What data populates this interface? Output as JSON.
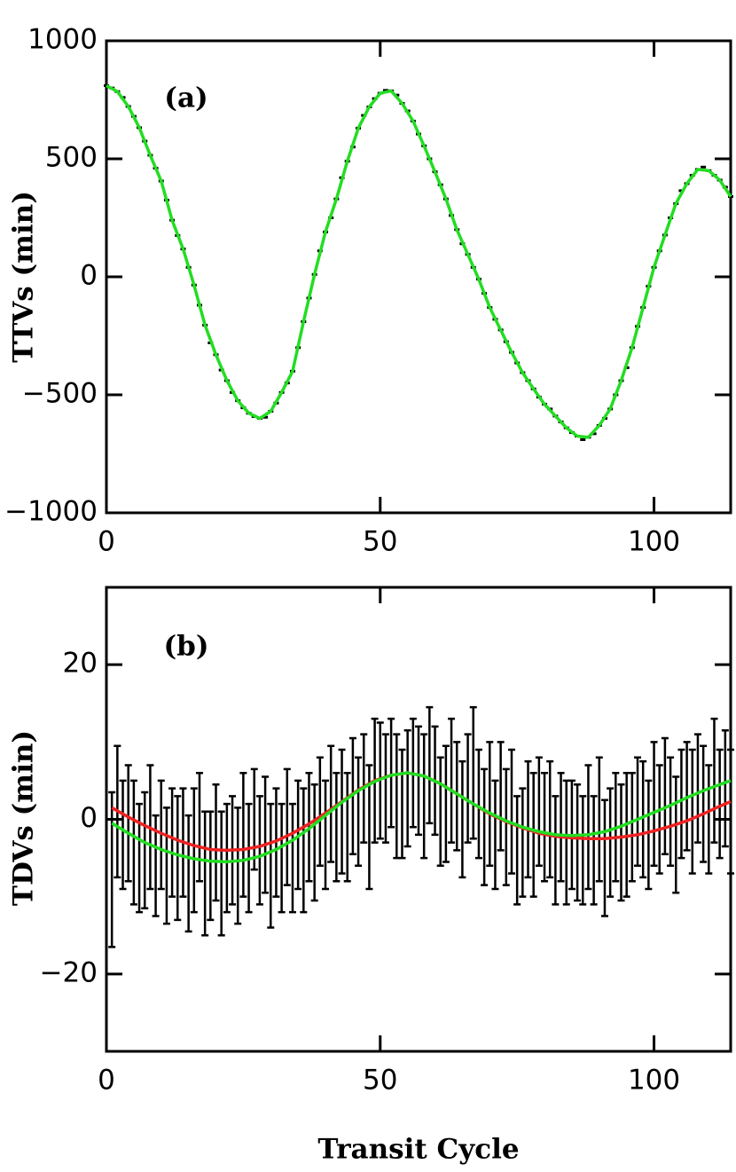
{
  "chart_data": [
    {
      "type": "line",
      "annotation": "(a)",
      "ylabel": "TTVs (min)",
      "xlim": [
        0,
        114
      ],
      "ylim": [
        -1000,
        1000
      ],
      "xticks": [
        0,
        50,
        100
      ],
      "yticks": [
        {
          "value": -1000,
          "label": "−1000"
        },
        {
          "value": -500,
          "label": "−500"
        },
        0,
        500,
        1000
      ],
      "series": [
        {
          "style": "dots",
          "color": "#000000",
          "x": [
            0,
            1,
            2,
            3,
            4,
            5,
            6,
            7,
            8,
            9,
            10,
            11,
            12,
            13,
            14,
            15,
            16,
            17,
            18,
            19,
            20,
            21,
            22,
            23,
            24,
            25,
            26,
            27,
            28,
            29,
            30,
            31,
            32,
            33,
            34,
            35,
            36,
            37,
            38,
            39,
            40,
            41,
            42,
            43,
            44,
            45,
            46,
            47,
            48,
            49,
            50,
            51,
            52,
            53,
            54,
            55,
            56,
            57,
            58,
            59,
            60,
            61,
            62,
            63,
            64,
            65,
            66,
            67,
            68,
            69,
            70,
            71,
            72,
            73,
            74,
            75,
            76,
            77,
            78,
            79,
            80,
            81,
            82,
            83,
            84,
            85,
            86,
            87,
            88,
            89,
            90,
            91,
            92,
            93,
            94,
            95,
            96,
            97,
            98,
            99,
            100,
            101,
            102,
            103,
            104,
            105,
            106,
            107,
            108,
            109,
            110,
            111,
            112,
            113,
            114
          ],
          "values": [
            810,
            800,
            785,
            760,
            722,
            680,
            632,
            575,
            515,
            460,
            406,
            325,
            240,
            175,
            118,
            40,
            -35,
            -120,
            -205,
            -280,
            -330,
            -395,
            -440,
            -490,
            -525,
            -555,
            -578,
            -592,
            -600,
            -595,
            -570,
            -535,
            -490,
            -450,
            -400,
            -300,
            -190,
            -90,
            10,
            110,
            190,
            250,
            330,
            420,
            490,
            550,
            630,
            684,
            720,
            755,
            778,
            790,
            788,
            770,
            735,
            703,
            660,
            605,
            555,
            500,
            445,
            390,
            330,
            260,
            200,
            140,
            95,
            40,
            -10,
            -70,
            -130,
            -180,
            -225,
            -275,
            -320,
            -365,
            -406,
            -440,
            -475,
            -510,
            -540,
            -560,
            -590,
            -615,
            -640,
            -660,
            -675,
            -690,
            -680,
            -665,
            -630,
            -600,
            -560,
            -500,
            -440,
            -385,
            -300,
            -210,
            -130,
            -40,
            40,
            110,
            177,
            250,
            310,
            365,
            395,
            430,
            455,
            465,
            450,
            430,
            410,
            380,
            340
          ]
        },
        {
          "style": "line",
          "color": "#22dd22",
          "x": [
            0,
            2,
            4,
            6,
            8,
            10,
            12,
            14,
            16,
            18,
            20,
            22,
            24,
            26,
            28,
            30,
            32,
            34,
            36,
            38,
            40,
            42,
            44,
            46,
            48,
            50,
            52,
            54,
            56,
            58,
            60,
            62,
            64,
            66,
            68,
            70,
            72,
            74,
            76,
            78,
            80,
            82,
            84,
            86,
            88,
            90,
            92,
            94,
            96,
            98,
            100,
            102,
            104,
            106,
            108,
            110,
            112,
            114
          ],
          "values": [
            810,
            785,
            722,
            632,
            515,
            406,
            240,
            118,
            -35,
            -205,
            -330,
            -440,
            -525,
            -578,
            -600,
            -570,
            -490,
            -400,
            -190,
            10,
            190,
            330,
            490,
            630,
            720,
            778,
            788,
            735,
            660,
            555,
            445,
            330,
            200,
            95,
            -10,
            -130,
            -225,
            -320,
            -406,
            -475,
            -540,
            -590,
            -640,
            -675,
            -680,
            -630,
            -560,
            -440,
            -300,
            -130,
            40,
            177,
            310,
            395,
            455,
            450,
            410,
            340
          ]
        }
      ]
    },
    {
      "type": "errorbar",
      "annotation": "(b)",
      "ylabel": "TDVs (min)",
      "xlabel": "Transit Cycle",
      "xlim": [
        0,
        114
      ],
      "ylim": [
        -30,
        30
      ],
      "xticks": [
        0,
        50,
        100
      ],
      "yticks": [
        {
          "value": -20,
          "label": "−20"
        },
        0,
        20
      ],
      "series": [
        {
          "style": "errorbar",
          "color": "#000000",
          "x": [
            1,
            2,
            3,
            4,
            5,
            6,
            7,
            8,
            9,
            10,
            11,
            12,
            13,
            14,
            15,
            16,
            17,
            18,
            19,
            20,
            21,
            22,
            23,
            24,
            25,
            26,
            27,
            28,
            29,
            30,
            31,
            32,
            33,
            34,
            35,
            36,
            37,
            38,
            39,
            40,
            41,
            42,
            43,
            44,
            45,
            46,
            47,
            48,
            49,
            50,
            51,
            52,
            53,
            54,
            55,
            56,
            57,
            58,
            59,
            60,
            61,
            62,
            63,
            64,
            65,
            66,
            67,
            68,
            69,
            70,
            71,
            72,
            73,
            74,
            75,
            76,
            77,
            78,
            79,
            80,
            81,
            82,
            83,
            84,
            85,
            86,
            87,
            88,
            89,
            90,
            91,
            92,
            93,
            94,
            95,
            96,
            97,
            98,
            99,
            100,
            101,
            102,
            103,
            104,
            105,
            106,
            107,
            108,
            109,
            110,
            111,
            112,
            113,
            114
          ],
          "values": [
            -6.5,
            1,
            -2,
            -0.5,
            -3,
            -5,
            -4,
            -1,
            -6,
            -2,
            -6,
            -3,
            -5,
            -3,
            -7,
            -4,
            -1,
            -7,
            -6,
            -3,
            -7,
            -5,
            -4,
            -6,
            -2,
            -5,
            0,
            -4,
            -2,
            -6,
            -3,
            -5,
            -1,
            -5,
            -2,
            -4,
            -1,
            -3,
            1,
            -2,
            2,
            -1,
            1,
            -1,
            3,
            1,
            4,
            -1,
            5,
            5,
            4,
            6,
            3,
            2,
            4,
            6,
            5,
            3,
            7,
            5,
            1,
            2,
            5,
            3,
            0,
            4,
            6,
            2,
            -1,
            2,
            -2,
            3,
            -1,
            1,
            -4,
            -3,
            0,
            -2,
            1,
            -1,
            0,
            -4,
            -1,
            -3,
            -2,
            -3,
            -4,
            -1,
            -4,
            0,
            -5,
            -3,
            -1,
            -3,
            -2,
            -1,
            1,
            0,
            -2,
            2,
            0,
            3,
            1,
            -2,
            2,
            3,
            1,
            4,
            2,
            0,
            5,
            2,
            4,
            1
          ],
          "errors": [
            10,
            8.5,
            7,
            7.5,
            8,
            7,
            7.5,
            8,
            6.5,
            7,
            7.5,
            7,
            8,
            7,
            7.5,
            8,
            7,
            8,
            7,
            7.5,
            8,
            7,
            7,
            7.5,
            8,
            7,
            6.5,
            7,
            7.5,
            8,
            7,
            7,
            7.5,
            7,
            7,
            8,
            7,
            7.5,
            7,
            7,
            7.5,
            7,
            8,
            7,
            7.5,
            7,
            7,
            8,
            8,
            7.5,
            7,
            7,
            8,
            7,
            7.5,
            7,
            7,
            8,
            7.5,
            7,
            7,
            7.5,
            8,
            7,
            7.5,
            7,
            8.5,
            7,
            7.5,
            8,
            7,
            7,
            7.5,
            8,
            7,
            7,
            7.5,
            8,
            7,
            7,
            7.5,
            7,
            7,
            8,
            7,
            7.5,
            7,
            8,
            7,
            8,
            7.5,
            7,
            7,
            7.5,
            8,
            7,
            7,
            7.5,
            7,
            8,
            7,
            7.5,
            7,
            7.5,
            7,
            7,
            8,
            7,
            7.5,
            7,
            8,
            7,
            7.5,
            8
          ]
        },
        {
          "style": "line",
          "color": "#ee2222",
          "x": [
            1,
            4,
            7,
            10,
            13,
            16,
            19,
            22,
            25,
            28,
            31,
            34,
            37,
            40,
            43,
            46,
            49,
            52,
            55,
            58,
            61,
            64,
            67,
            70,
            73,
            76,
            79,
            82,
            85,
            88,
            91,
            94,
            97,
            100,
            103,
            106,
            109,
            112,
            114
          ],
          "values": [
            1.5,
            0.3,
            -0.8,
            -1.8,
            -2.7,
            -3.4,
            -3.9,
            -4,
            -3.9,
            -3.5,
            -2.8,
            -1.8,
            -0.6,
            0.8,
            2.3,
            3.8,
            5,
            5.7,
            6,
            5.6,
            4.6,
            3.3,
            2,
            0.7,
            -0.3,
            -1.1,
            -1.8,
            -2.2,
            -2.4,
            -2.5,
            -2.5,
            -2.3,
            -2,
            -1.5,
            -0.9,
            -0.2,
            0.7,
            1.7,
            2.3
          ]
        },
        {
          "style": "line",
          "color": "#22dd22",
          "x": [
            1,
            4,
            7,
            10,
            13,
            16,
            19,
            22,
            25,
            28,
            31,
            34,
            37,
            40,
            43,
            46,
            49,
            52,
            55,
            58,
            61,
            64,
            67,
            70,
            73,
            76,
            79,
            82,
            85,
            88,
            91,
            94,
            97,
            100,
            103,
            106,
            109,
            112,
            114
          ],
          "values": [
            -0.5,
            -1.8,
            -3,
            -3.9,
            -4.6,
            -5.1,
            -5.4,
            -5.5,
            -5.3,
            -4.8,
            -3.9,
            -2.7,
            -1.2,
            0.5,
            2.2,
            3.7,
            4.9,
            5.7,
            6,
            5.6,
            4.6,
            3.3,
            2,
            0.8,
            -0.2,
            -1,
            -1.6,
            -2,
            -2.1,
            -2,
            -1.6,
            -0.9,
            0,
            0.9,
            1.8,
            2.8,
            3.7,
            4.5,
            5
          ]
        }
      ]
    }
  ]
}
